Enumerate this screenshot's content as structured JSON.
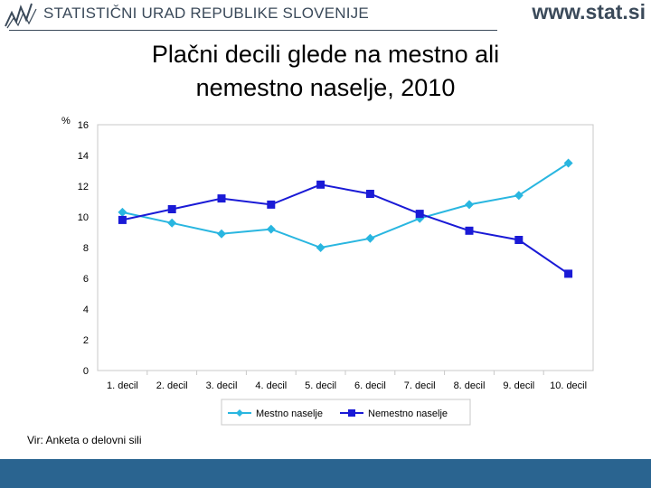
{
  "header": {
    "org_name": "STATISTIČNI URAD REPUBLIKE SLOVENIJE",
    "website": "www.stat.si"
  },
  "title_line1": "Plačni decili glede na mestno ali",
  "title_line2": "nemestno naselje, 2010",
  "source": "Vir: Anketa o delovni sili",
  "colors": {
    "mestno": "#29b6e0",
    "nemestno": "#1a1ad6",
    "footer": "#2a6490"
  },
  "chart_data": {
    "type": "line",
    "title": "Plačni decili glede na mestno ali nemestno naselje, 2010",
    "xlabel": "",
    "ylabel": "%",
    "ylim": [
      0,
      16
    ],
    "yticks": [
      0,
      2,
      4,
      6,
      8,
      10,
      12,
      14,
      16
    ],
    "categories": [
      "1. decil",
      "2. decil",
      "3. decil",
      "4. decil",
      "5. decil",
      "6. decil",
      "7. decil",
      "8. decil",
      "9. decil",
      "10. decil"
    ],
    "series": [
      {
        "name": "Mestno naselje",
        "marker": "diamond",
        "values": [
          10.3,
          9.6,
          8.9,
          9.2,
          8.0,
          8.6,
          9.9,
          10.8,
          11.4,
          13.5
        ]
      },
      {
        "name": "Nemestno naselje",
        "marker": "square",
        "values": [
          9.8,
          10.5,
          11.2,
          10.8,
          12.1,
          11.5,
          10.2,
          9.1,
          8.5,
          6.3
        ]
      }
    ],
    "legend_position": "bottom"
  }
}
